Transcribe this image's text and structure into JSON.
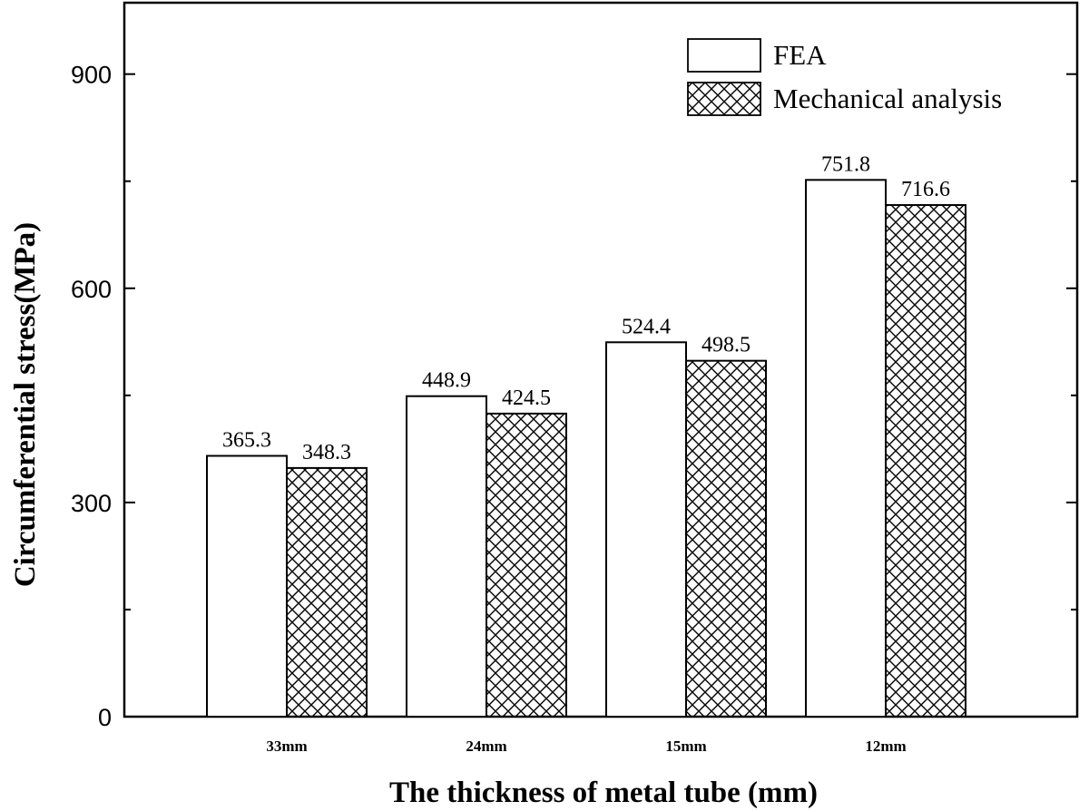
{
  "chart_data": {
    "type": "bar",
    "title": "",
    "xlabel": "The thickness of metal tube (mm)",
    "ylabel": "Circumferential stress(MPa)",
    "categories": [
      "33mm",
      "24mm",
      "15mm",
      "12mm"
    ],
    "series": [
      {
        "name": "FEA",
        "values": [
          365.3,
          448.9,
          524.4,
          751.8
        ],
        "labels": [
          "365.3",
          "448.9",
          "524.4",
          "751.8"
        ],
        "pattern": "none"
      },
      {
        "name": "Mechanical analysis",
        "values": [
          348.3,
          424.5,
          498.5,
          716.6
        ],
        "labels": [
          "348.3",
          "424.5",
          "498.5",
          "716.6"
        ],
        "pattern": "crosshatch"
      }
    ],
    "ylim": [
      0,
      1000
    ],
    "yticks": [
      0,
      300,
      600,
      900
    ],
    "ytick_labels": [
      "0",
      "300",
      "600",
      "900"
    ],
    "legend": "top-right",
    "grid": false
  },
  "colors": {
    "axis": "#000000",
    "bar_fill": "#ffffff",
    "hatch": "#000000"
  }
}
